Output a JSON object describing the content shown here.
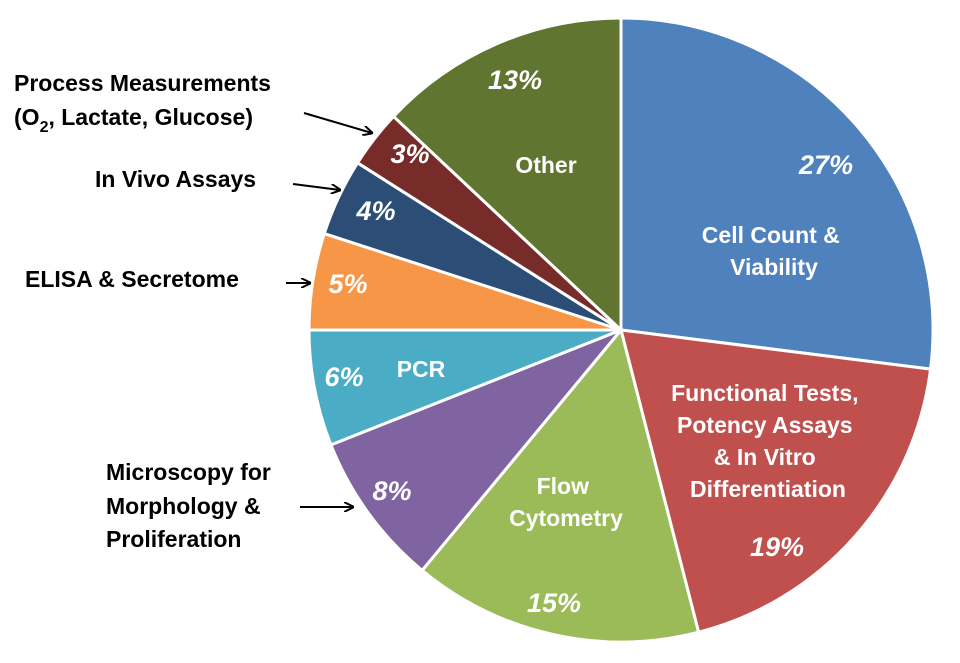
{
  "chart_data": {
    "type": "pie",
    "start_angle_deg": 0,
    "direction": "clockwise",
    "slices": [
      {
        "label": "Cell Count & Viability",
        "value": 27,
        "pct_label": "27%",
        "color": "#4F81BD"
      },
      {
        "label": "Functional Tests, Potency Assays & In Vitro Differentiation",
        "value": 19,
        "pct_label": "19%",
        "color": "#C0504D"
      },
      {
        "label": "Flow Cytometry",
        "value": 15,
        "pct_label": "15%",
        "color": "#9BBB59"
      },
      {
        "label": "Microscopy for Morphology & Proliferation",
        "value": 8,
        "pct_label": "8%",
        "color": "#8064A2"
      },
      {
        "label": "PCR",
        "value": 6,
        "pct_label": "6%",
        "color": "#4BACC6"
      },
      {
        "label": "ELISA & Secretome",
        "value": 5,
        "pct_label": "5%",
        "color": "#F79646"
      },
      {
        "label": "In Vivo Assays",
        "value": 4,
        "pct_label": "4%",
        "color": "#2C4D75"
      },
      {
        "label": "Process Measurements (O2, Lactate, Glucose)",
        "value": 3,
        "pct_label": "3%",
        "color": "#772C2A"
      },
      {
        "label": "Other",
        "value": 13,
        "pct_label": "13%",
        "color": "#5F7530"
      }
    ],
    "labels": {
      "cell_count": [
        "Cell Count &",
        "Viability"
      ],
      "functional": [
        "Functional Tests,",
        "Potency Assays",
        "& In Vitro",
        "Differentiation"
      ],
      "flow": [
        "Flow",
        "Cytometry"
      ],
      "microscopy": [
        "Microscopy for",
        "Morphology &",
        "Proliferation"
      ],
      "pcr": "PCR",
      "elisa": "ELISA & Secretome",
      "in_vivo": "In Vivo Assays",
      "process_line1": "Process Measurements",
      "process_line2_a": "(O",
      "process_line2_sub": "2",
      "process_line2_b": ", Lactate, Glucose)",
      "other": "Other"
    }
  }
}
